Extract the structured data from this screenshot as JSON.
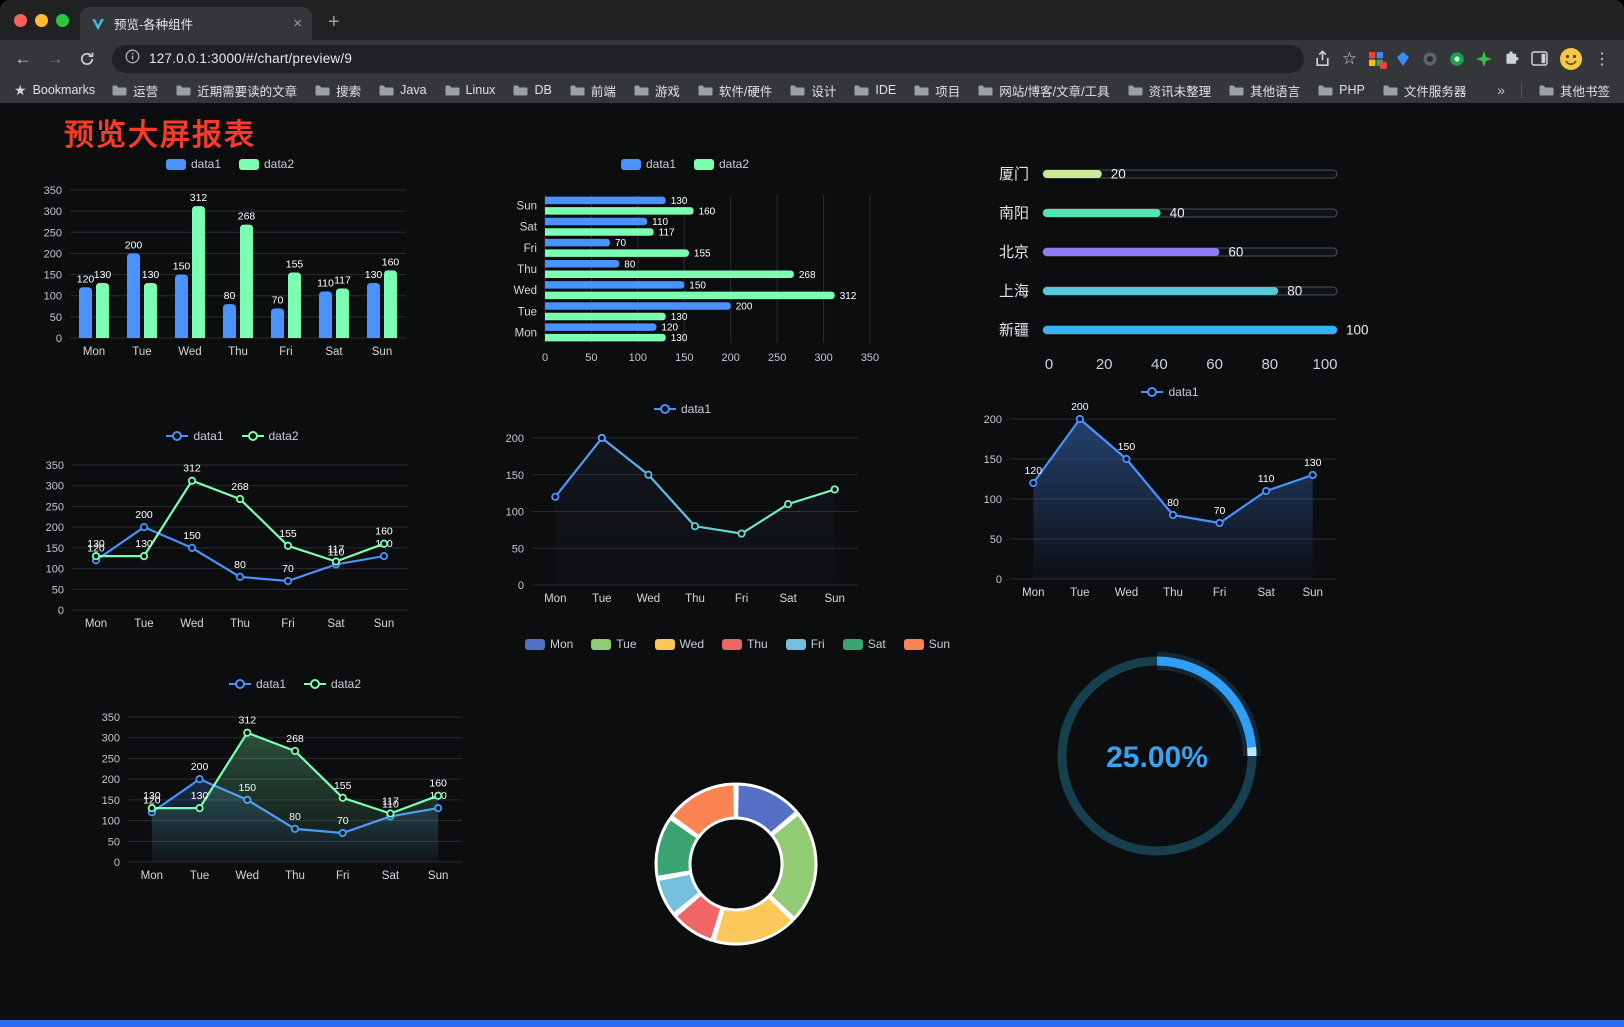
{
  "browser": {
    "tab": {
      "title": "预览-各种组件"
    },
    "icons": {
      "back": "←",
      "forward": "→",
      "new_tab": "+",
      "close_tab": "×",
      "bookmark_star": "☆",
      "bookmarks_bar_star": "★",
      "menu": "⋮",
      "overflow": "»"
    },
    "address": {
      "url": "127.0.0.1:3000/#/chart/preview/9"
    },
    "bookmarks": {
      "label": "Bookmarks",
      "items": [
        "运营",
        "近期需要读的文章",
        "搜索",
        "Java",
        "Linux",
        "DB",
        "前端",
        "游戏",
        "软件/硬件",
        "设计",
        "IDE",
        "项目",
        "网站/博客/文章/工具",
        "资讯未整理",
        "其他语言",
        "PHP",
        "文件服务器"
      ],
      "other_label": "其他书签"
    }
  },
  "page": {
    "title": "预览大屏报表"
  },
  "chart_data": [
    {
      "id": "bar-vertical",
      "type": "bar",
      "categories": [
        "Mon",
        "Tue",
        "Wed",
        "Thu",
        "Fri",
        "Sat",
        "Sun"
      ],
      "ylim": [
        0,
        350
      ],
      "ystep": 50,
      "labels": true,
      "legend_position": "top",
      "series": [
        {
          "name": "data1",
          "color": "#4992ff",
          "values": [
            120,
            200,
            150,
            80,
            70,
            110,
            130
          ]
        },
        {
          "name": "data2",
          "color": "#7cffb2",
          "values": [
            130,
            130,
            312,
            268,
            155,
            117,
            160
          ]
        }
      ]
    },
    {
      "id": "bar-horizontal",
      "type": "hbar",
      "categories": [
        "Mon",
        "Tue",
        "Wed",
        "Thu",
        "Fri",
        "Sat",
        "Sun"
      ],
      "xlim": [
        0,
        350
      ],
      "xstep": 50,
      "labels": true,
      "legend_position": "top",
      "series": [
        {
          "name": "data1",
          "color": "#4992ff",
          "values": [
            120,
            200,
            150,
            80,
            70,
            110,
            130
          ]
        },
        {
          "name": "data2",
          "color": "#7cffb2",
          "values": [
            130,
            130,
            312,
            268,
            155,
            117,
            160
          ]
        }
      ]
    },
    {
      "id": "progress-bars",
      "type": "progress",
      "max": 100,
      "axis_ticks": [
        0,
        20,
        40,
        60,
        80,
        100
      ],
      "items": [
        {
          "label": "厦门",
          "value": 20,
          "color": "#cbe89b"
        },
        {
          "label": "南阳",
          "value": 40,
          "color": "#4fe6b4"
        },
        {
          "label": "北京",
          "value": 60,
          "color": "#8d7cf3"
        },
        {
          "label": "上海",
          "value": 80,
          "color": "#55c9d9"
        },
        {
          "label": "新疆",
          "value": 100,
          "color": "#33b3f2"
        }
      ]
    },
    {
      "id": "line-basic",
      "type": "line",
      "categories": [
        "Mon",
        "Tue",
        "Wed",
        "Thu",
        "Fri",
        "Sat",
        "Sun"
      ],
      "ylim": [
        0,
        350
      ],
      "ystep": 50,
      "labels": true,
      "legend_position": "top",
      "series": [
        {
          "name": "data1",
          "color": "#4992ff",
          "values": [
            120,
            200,
            150,
            80,
            70,
            110,
            130
          ]
        },
        {
          "name": "data2",
          "color": "#7cffb2",
          "values": [
            130,
            130,
            312,
            268,
            155,
            117,
            160
          ]
        }
      ]
    },
    {
      "id": "line-gradient",
      "type": "line",
      "categories": [
        "Mon",
        "Tue",
        "Wed",
        "Thu",
        "Fri",
        "Sat",
        "Sun"
      ],
      "ylim": [
        0,
        200
      ],
      "ystep": 50,
      "labels": false,
      "legend_position": "top",
      "series": [
        {
          "name": "data1",
          "color": "#4992ff",
          "gradient": [
            "#4992ff",
            "#7cffb2"
          ],
          "area": true,
          "area_color": "#5a78c8",
          "area_opacity": 0.08,
          "values": [
            120,
            200,
            150,
            80,
            70,
            110,
            130
          ]
        }
      ]
    },
    {
      "id": "area-basic",
      "type": "line",
      "categories": [
        "Mon",
        "Tue",
        "Wed",
        "Thu",
        "Fri",
        "Sat",
        "Sun"
      ],
      "ylim": [
        0,
        200
      ],
      "ystep": 50,
      "labels": true,
      "legend_position": "top",
      "series": [
        {
          "name": "data1",
          "color": "#4992ff",
          "area": true,
          "area_opacity": 0.4,
          "values": [
            120,
            200,
            150,
            80,
            70,
            110,
            130
          ]
        }
      ]
    },
    {
      "id": "line-area",
      "type": "line",
      "categories": [
        "Mon",
        "Tue",
        "Wed",
        "Thu",
        "Fri",
        "Sat",
        "Sun"
      ],
      "ylim": [
        0,
        350
      ],
      "ystep": 50,
      "labels": true,
      "legend_position": "top",
      "series": [
        {
          "name": "data1",
          "color": "#4992ff",
          "area": true,
          "area_opacity": 0.22,
          "values": [
            120,
            200,
            150,
            80,
            70,
            110,
            130
          ]
        },
        {
          "name": "data2",
          "color": "#7cffb2",
          "area": true,
          "area_opacity": 0.28,
          "values": [
            130,
            130,
            312,
            268,
            155,
            117,
            160
          ]
        }
      ]
    },
    {
      "id": "donut",
      "type": "donut",
      "legend_position": "top",
      "items": [
        {
          "label": "Mon",
          "value": 120,
          "color": "#5470c6"
        },
        {
          "label": "Tue",
          "value": 200,
          "color": "#91cc75"
        },
        {
          "label": "Wed",
          "value": 150,
          "color": "#fac858"
        },
        {
          "label": "Thu",
          "value": 80,
          "color": "#ee6666"
        },
        {
          "label": "Fri",
          "value": 70,
          "color": "#73c0de"
        },
        {
          "label": "Sat",
          "value": 110,
          "color": "#3ba272"
        },
        {
          "label": "Sun",
          "value": 130,
          "color": "#fc8452"
        }
      ]
    },
    {
      "id": "gauge",
      "type": "gauge",
      "value": 25,
      "display": "25.00%",
      "color": "#2f9ff5",
      "track_color": "#17404e"
    }
  ]
}
